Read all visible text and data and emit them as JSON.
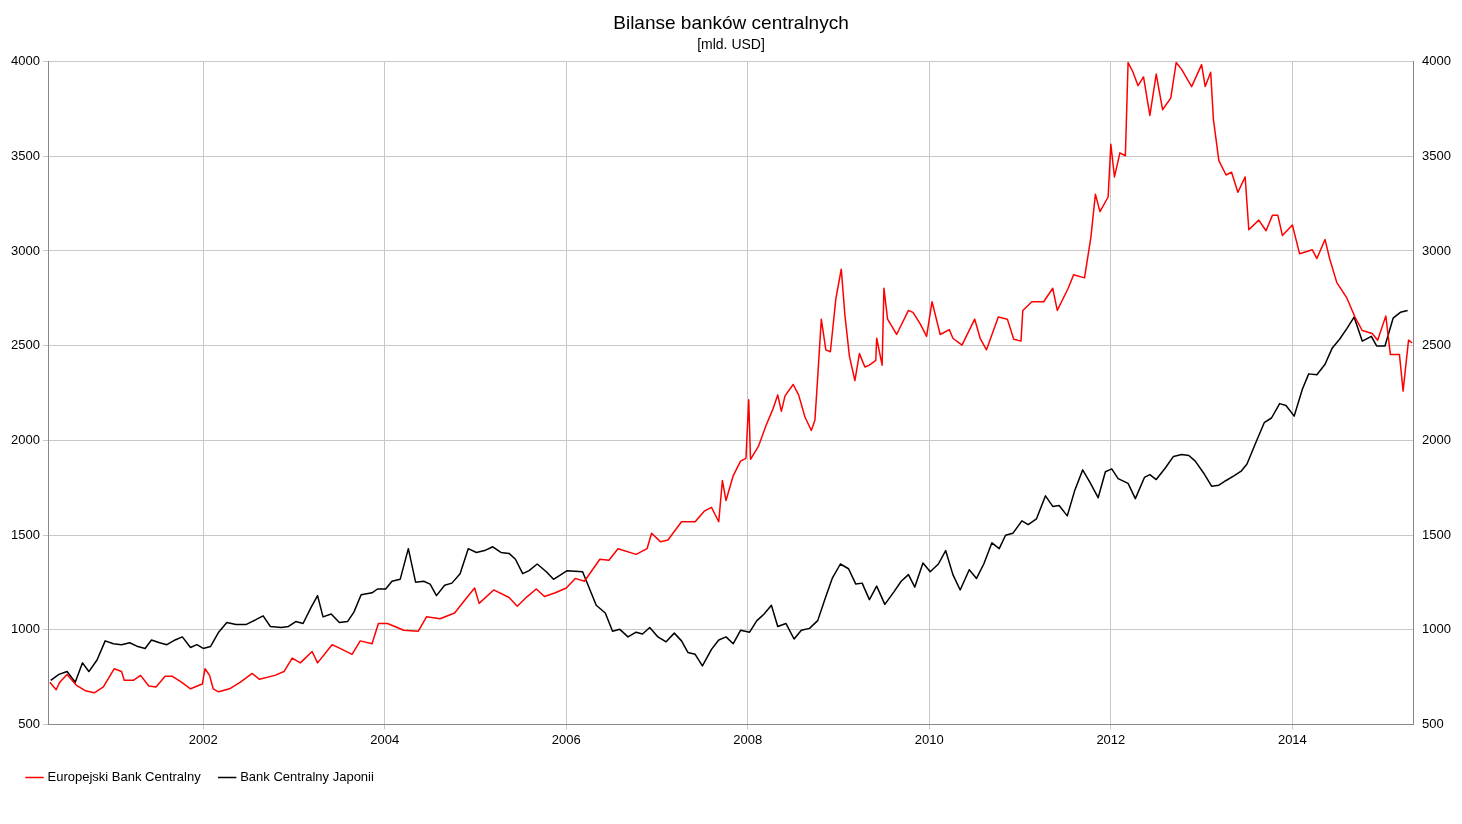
{
  "chart_data": {
    "type": "line",
    "title": "Bilanse banków centralnych",
    "subtitle": "[mld. USD]",
    "xlim": [
      2000.3,
      2015.33
    ],
    "xticks": [
      2002,
      2004,
      2006,
      2008,
      2010,
      2012,
      2014
    ],
    "ylim": [
      500,
      4000
    ],
    "yticks": [
      500,
      1000,
      1500,
      2000,
      2500,
      3000,
      3500,
      4000
    ],
    "y2lim": [
      500,
      4000
    ],
    "y2ticks": [
      500,
      1000,
      1500,
      2000,
      2500,
      3000,
      3500,
      4000
    ],
    "grid": true,
    "legend": "bottom left",
    "marker": "none",
    "line_style": "solid",
    "series": [
      {
        "name": "Europejski Bank Centralny",
        "color": "#ff0000",
        "x": [
          2000.31,
          2000.38,
          2000.42,
          2000.5,
          2000.6,
          2000.7,
          2000.8,
          2000.9,
          2001.02,
          2001.1,
          2001.13,
          2001.23,
          2001.31,
          2001.4,
          2001.48,
          2001.58,
          2001.66,
          2001.76,
          2001.86,
          2001.99,
          2002.02,
          2002.07,
          2002.11,
          2002.17,
          2002.29,
          2002.41,
          2002.54,
          2002.62,
          2002.79,
          2002.89,
          2002.98,
          2003.07,
          2003.2,
          2003.26,
          2003.42,
          2003.53,
          2003.64,
          2003.73,
          2003.86,
          2003.93,
          2004.03,
          2004.21,
          2004.37,
          2004.46,
          2004.61,
          2004.77,
          2004.87,
          2004.99,
          2005.04,
          2005.2,
          2005.37,
          2005.46,
          2005.57,
          2005.67,
          2005.76,
          2005.88,
          2006.0,
          2006.1,
          2006.2,
          2006.37,
          2006.47,
          2006.57,
          2006.77,
          2006.89,
          2006.94,
          2007.04,
          2007.12,
          2007.27,
          2007.42,
          2007.52,
          2007.6,
          2007.68,
          2007.72,
          2007.76,
          2007.84,
          2007.92,
          2007.98,
          2008.01,
          2008.03,
          2008.12,
          2008.2,
          2008.28,
          2008.33,
          2008.37,
          2008.41,
          2008.5,
          2008.56,
          2008.63,
          2008.7,
          2008.74,
          2008.77,
          2008.81,
          2008.86,
          2008.91,
          2008.97,
          2009.03,
          2009.07,
          2009.12,
          2009.18,
          2009.23,
          2009.29,
          2009.34,
          2009.41,
          2009.42,
          2009.48,
          2009.5,
          2009.54,
          2009.64,
          2009.77,
          2009.82,
          2009.9,
          2009.97,
          2010.03,
          2010.12,
          2010.22,
          2010.26,
          2010.36,
          2010.5,
          2010.56,
          2010.63,
          2010.76,
          2010.86,
          2010.93,
          2011.01,
          2011.03,
          2011.13,
          2011.26,
          2011.36,
          2011.41,
          2011.53,
          2011.59,
          2011.71,
          2011.78,
          2011.83,
          2011.88,
          2011.97,
          2012.0,
          2012.04,
          2012.1,
          2012.16,
          2012.19,
          2012.24,
          2012.3,
          2012.36,
          2012.43,
          2012.5,
          2012.57,
          2012.66,
          2012.72,
          2012.78,
          2012.89,
          2013.0,
          2013.04,
          2013.1,
          2013.13,
          2013.19,
          2013.27,
          2013.33,
          2013.4,
          2013.48,
          2013.52,
          2013.63,
          2013.71,
          2013.78,
          2013.84,
          2013.89,
          2014.0,
          2014.08,
          2014.22,
          2014.27,
          2014.36,
          2014.41,
          2014.49,
          2014.6,
          2014.69,
          2014.77,
          2014.88,
          2014.94,
          2015.0,
          2015.03,
          2015.08,
          2015.18,
          2015.22,
          2015.28,
          2015.32
        ],
        "values": [
          723,
          683,
          723,
          764,
          708,
          678,
          667,
          698,
          794,
          779,
          733,
          733,
          759,
          703,
          698,
          754,
          754,
          723,
          688,
          713,
          794,
          759,
          688,
          672,
          688,
          723,
          769,
          738,
          759,
          779,
          850,
          825,
          885,
          825,
          921,
          896,
          870,
          941,
          926,
          1033,
          1033,
          997,
          992,
          1068,
          1058,
          1088,
          1149,
          1220,
          1139,
          1210,
          1170,
          1124,
          1175,
          1215,
          1175,
          1195,
          1220,
          1271,
          1256,
          1372,
          1367,
          1428,
          1398,
          1428,
          1509,
          1464,
          1474,
          1570,
          1570,
          1626,
          1646,
          1570,
          1788,
          1682,
          1814,
          1890,
          1905,
          2214,
          1900,
          1971,
          2077,
          2169,
          2240,
          2153,
          2235,
          2295,
          2240,
          2123,
          2052,
          2108,
          2331,
          2640,
          2478,
          2468,
          2747,
          2904,
          2661,
          2443,
          2316,
          2458,
          2387,
          2397,
          2422,
          2539,
          2397,
          2803,
          2640,
          2559,
          2686,
          2676,
          2615,
          2549,
          2732,
          2559,
          2585,
          2539,
          2503,
          2640,
          2539,
          2478,
          2651,
          2640,
          2534,
          2524,
          2686,
          2732,
          2732,
          2803,
          2686,
          2803,
          2874,
          2858,
          3072,
          3300,
          3208,
          3285,
          3563,
          3391,
          3518,
          3503,
          3995,
          3949,
          3873,
          3919,
          3716,
          3934,
          3746,
          3807,
          3995,
          3959,
          3868,
          3984,
          3868,
          3944,
          3695,
          3477,
          3401,
          3416,
          3310,
          3391,
          3112,
          3163,
          3107,
          3188,
          3188,
          3082,
          3137,
          2985,
          3006,
          2960,
          3061,
          2960,
          2833,
          2752,
          2651,
          2580,
          2564,
          2529,
          2615,
          2656,
          2453,
          2453,
          2260,
          2529,
          2514
        ]
      },
      {
        "name": "Bank Centralny Japonii",
        "color": "#000000",
        "x": [
          2000.32,
          2000.41,
          2000.5,
          2000.59,
          2000.67,
          2000.74,
          2000.83,
          2000.92,
          2001.01,
          2001.1,
          2001.19,
          2001.28,
          2001.36,
          2001.43,
          2001.52,
          2001.6,
          2001.69,
          2001.77,
          2001.86,
          2001.93,
          2002.0,
          2002.08,
          2002.17,
          2002.26,
          2002.36,
          2002.47,
          2002.58,
          2002.66,
          2002.74,
          2002.86,
          2002.94,
          2003.02,
          2003.1,
          2003.19,
          2003.26,
          2003.32,
          2003.41,
          2003.5,
          2003.59,
          2003.66,
          2003.74,
          2003.86,
          2003.92,
          2004.01,
          2004.08,
          2004.17,
          2004.26,
          2004.34,
          2004.43,
          2004.5,
          2004.57,
          2004.66,
          2004.74,
          2004.83,
          2004.92,
          2005.01,
          2005.1,
          2005.19,
          2005.28,
          2005.37,
          2005.44,
          2005.52,
          2005.59,
          2005.68,
          2005.78,
          2005.86,
          2006.01,
          2006.18,
          2006.33,
          2006.43,
          2006.51,
          2006.59,
          2006.68,
          2006.77,
          2006.84,
          2006.92,
          2007.01,
          2007.1,
          2007.19,
          2007.27,
          2007.34,
          2007.42,
          2007.5,
          2007.6,
          2007.68,
          2007.76,
          2007.84,
          2007.92,
          2008.02,
          2008.1,
          2008.18,
          2008.26,
          2008.33,
          2008.42,
          2008.51,
          2008.59,
          2008.68,
          2008.77,
          2008.86,
          2008.93,
          2009.02,
          2009.11,
          2009.19,
          2009.26,
          2009.34,
          2009.42,
          2009.51,
          2009.61,
          2009.69,
          2009.77,
          2009.84,
          2009.93,
          2010.01,
          2010.1,
          2010.18,
          2010.26,
          2010.34,
          2010.44,
          2010.52,
          2010.6,
          2010.69,
          2010.77,
          2010.84,
          2010.92,
          2011.02,
          2011.09,
          2011.18,
          2011.28,
          2011.36,
          2011.43,
          2011.52,
          2011.6,
          2011.69,
          2011.77,
          2011.86,
          2011.94,
          2012.01,
          2012.08,
          2012.19,
          2012.27,
          2012.37,
          2012.43,
          2012.5,
          2012.6,
          2012.69,
          2012.78,
          2012.86,
          2012.93,
          2013.02,
          2013.11,
          2013.19,
          2013.27,
          2013.36,
          2013.44,
          2013.5,
          2013.6,
          2013.69,
          2013.77,
          2013.86,
          2013.93,
          2014.02,
          2014.11,
          2014.18,
          2014.27,
          2014.36,
          2014.44,
          2014.52,
          2014.6,
          2014.68,
          2014.77,
          2014.87,
          2014.93,
          2015.02,
          2015.11,
          2015.19,
          2015.27
        ],
        "values": [
          733,
          764,
          779,
          723,
          825,
          779,
          840,
          941,
          926,
          921,
          931,
          911,
          901,
          946,
          931,
          921,
          946,
          962,
          906,
          921,
          901,
          911,
          987,
          1038,
          1027,
          1027,
          1053,
          1073,
          1017,
          1012,
          1017,
          1043,
          1033,
          1119,
          1180,
          1068,
          1083,
          1038,
          1043,
          1093,
          1185,
          1195,
          1215,
          1215,
          1256,
          1266,
          1428,
          1251,
          1256,
          1241,
          1180,
          1235,
          1246,
          1296,
          1428,
          1408,
          1418,
          1438,
          1408,
          1403,
          1372,
          1296,
          1312,
          1347,
          1306,
          1266,
          1312,
          1306,
          1129,
          1088,
          992,
          1002,
          962,
          987,
          977,
          1012,
          962,
          936,
          982,
          941,
          880,
          870,
          809,
          896,
          946,
          962,
          926,
          997,
          987,
          1048,
          1083,
          1129,
          1017,
          1033,
          951,
          997,
          1007,
          1048,
          1175,
          1271,
          1347,
          1322,
          1241,
          1246,
          1159,
          1230,
          1134,
          1200,
          1256,
          1291,
          1225,
          1352,
          1306,
          1347,
          1418,
          1291,
          1210,
          1317,
          1271,
          1347,
          1459,
          1428,
          1499,
          1509,
          1575,
          1555,
          1585,
          1707,
          1651,
          1656,
          1601,
          1732,
          1844,
          1778,
          1697,
          1834,
          1849,
          1798,
          1773,
          1692,
          1804,
          1819,
          1793,
          1854,
          1915,
          1925,
          1920,
          1890,
          1829,
          1758,
          1763,
          1788,
          1814,
          1839,
          1875,
          1991,
          2093,
          2118,
          2194,
          2184,
          2128,
          2270,
          2351,
          2346,
          2402,
          2488,
          2534,
          2590,
          2651,
          2524,
          2549,
          2498,
          2498,
          2645,
          2676,
          2686
        ]
      }
    ]
  }
}
